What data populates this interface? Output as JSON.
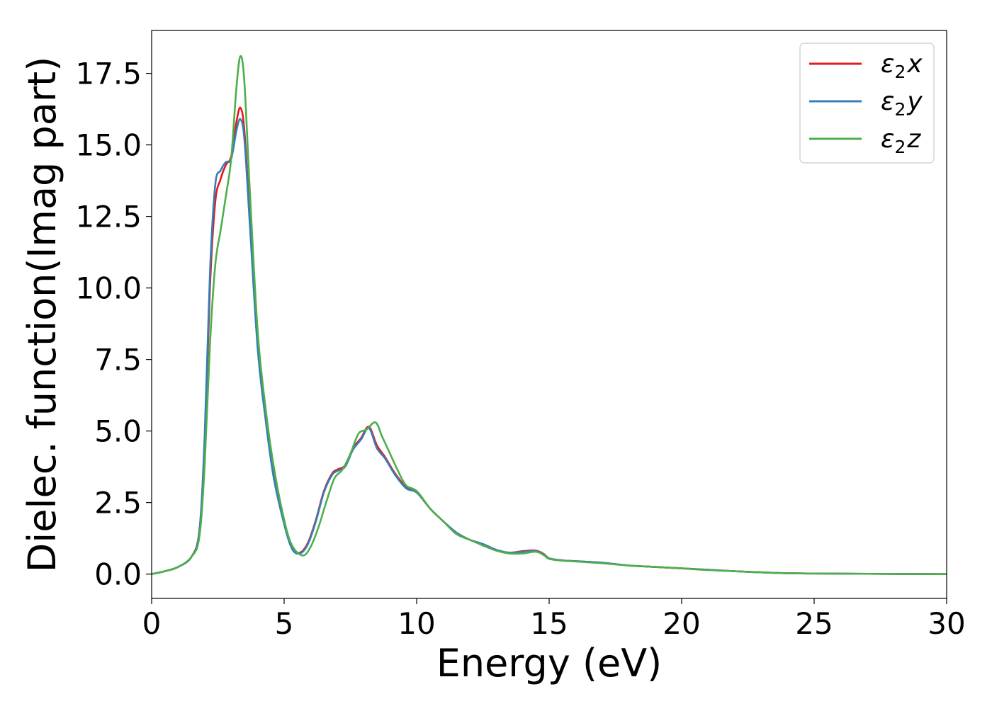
{
  "chart_data": {
    "type": "line",
    "title": "",
    "xlabel": "Energy (eV)",
    "ylabel": "Dielec. function(Imag part)",
    "xlim": [
      0,
      30
    ],
    "ylim": [
      -0.85,
      19.0
    ],
    "xticks": [
      0,
      5,
      10,
      15,
      20,
      25,
      30
    ],
    "xtick_labels": [
      "0",
      "5",
      "10",
      "15",
      "20",
      "25",
      "30"
    ],
    "yticks": [
      0.0,
      2.5,
      5.0,
      7.5,
      10.0,
      12.5,
      15.0,
      17.5
    ],
    "ytick_labels": [
      "0.0",
      "2.5",
      "5.0",
      "7.5",
      "10.0",
      "12.5",
      "15.0",
      "17.5"
    ],
    "grid": false,
    "legend_position": "top-right",
    "series": [
      {
        "name": "ε2x",
        "legend_base": "ε",
        "legend_sub": "2",
        "legend_suffix": "x",
        "color": "#e41a1c",
        "x": [
          0,
          0.5,
          1.0,
          1.5,
          1.8,
          2.0,
          2.2,
          2.4,
          2.6,
          2.8,
          3.0,
          3.2,
          3.35,
          3.5,
          3.7,
          4.0,
          4.3,
          4.6,
          5.0,
          5.3,
          5.6,
          5.9,
          6.2,
          6.5,
          6.8,
          7.0,
          7.3,
          7.6,
          7.9,
          8.2,
          8.5,
          8.8,
          9.2,
          9.6,
          10.0,
          10.5,
          11.0,
          11.5,
          12.0,
          12.5,
          13.0,
          13.5,
          14.0,
          14.5,
          14.8,
          15.0,
          15.5,
          16.0,
          17.0,
          18.0,
          19.0,
          20.0,
          21.0,
          22.0,
          23.0,
          24.0,
          25.0,
          27.0,
          30.0
        ],
        "y": [
          0.0,
          0.1,
          0.25,
          0.6,
          1.5,
          4.5,
          10.0,
          13.0,
          13.8,
          14.3,
          14.6,
          15.8,
          16.3,
          15.5,
          12.5,
          8.0,
          5.5,
          3.5,
          1.8,
          0.9,
          0.75,
          1.1,
          1.9,
          2.9,
          3.5,
          3.65,
          3.8,
          4.4,
          4.75,
          5.15,
          4.5,
          4.1,
          3.5,
          3.05,
          2.9,
          2.3,
          1.85,
          1.45,
          1.2,
          1.05,
          0.85,
          0.75,
          0.8,
          0.82,
          0.7,
          0.55,
          0.48,
          0.45,
          0.4,
          0.3,
          0.25,
          0.2,
          0.15,
          0.1,
          0.06,
          0.03,
          0.02,
          0.01,
          0.0
        ]
      },
      {
        "name": "ε2y",
        "legend_base": "ε",
        "legend_sub": "2",
        "legend_suffix": "y",
        "color": "#377eb8",
        "x": [
          0,
          0.5,
          1.0,
          1.5,
          1.8,
          2.0,
          2.2,
          2.4,
          2.6,
          2.8,
          3.0,
          3.2,
          3.35,
          3.5,
          3.7,
          4.0,
          4.3,
          4.6,
          5.0,
          5.3,
          5.6,
          5.9,
          6.2,
          6.5,
          6.8,
          7.0,
          7.3,
          7.6,
          7.9,
          8.2,
          8.5,
          8.8,
          9.2,
          9.6,
          10.0,
          10.5,
          11.0,
          11.5,
          12.0,
          12.5,
          13.0,
          13.5,
          14.0,
          14.5,
          14.8,
          15.0,
          15.5,
          16.0,
          17.0,
          18.0,
          19.0,
          20.0,
          21.0,
          22.0,
          23.0,
          24.0,
          25.0,
          27.0,
          30.0
        ],
        "y": [
          0.0,
          0.1,
          0.25,
          0.6,
          1.5,
          4.8,
          10.5,
          13.6,
          14.1,
          14.4,
          14.5,
          15.5,
          15.9,
          15.2,
          12.3,
          7.9,
          5.4,
          3.4,
          1.75,
          0.88,
          0.72,
          1.05,
          1.85,
          2.85,
          3.45,
          3.6,
          3.75,
          4.35,
          4.7,
          5.1,
          4.4,
          4.05,
          3.45,
          3.0,
          2.85,
          2.3,
          1.85,
          1.45,
          1.2,
          1.05,
          0.85,
          0.75,
          0.78,
          0.8,
          0.68,
          0.55,
          0.48,
          0.45,
          0.4,
          0.3,
          0.25,
          0.2,
          0.15,
          0.1,
          0.06,
          0.03,
          0.02,
          0.01,
          0.0
        ]
      },
      {
        "name": "ε2z",
        "legend_base": "ε",
        "legend_sub": "2",
        "legend_suffix": "z",
        "color": "#4daf4a",
        "x": [
          0,
          0.5,
          1.0,
          1.5,
          1.8,
          2.0,
          2.2,
          2.4,
          2.6,
          2.8,
          3.0,
          3.2,
          3.35,
          3.5,
          3.7,
          4.0,
          4.3,
          4.6,
          5.0,
          5.3,
          5.7,
          6.0,
          6.3,
          6.6,
          6.9,
          7.2,
          7.5,
          7.8,
          8.1,
          8.45,
          8.7,
          9.0,
          9.3,
          9.6,
          10.0,
          10.5,
          11.0,
          11.5,
          12.0,
          12.5,
          13.0,
          13.5,
          14.0,
          14.5,
          14.8,
          15.0,
          15.5,
          16.0,
          17.0,
          18.0,
          19.0,
          20.0,
          21.0,
          22.0,
          23.0,
          24.0,
          25.0,
          27.0,
          30.0
        ],
        "y": [
          0.0,
          0.1,
          0.25,
          0.6,
          1.3,
          3.8,
          8.0,
          10.8,
          12.0,
          13.2,
          14.5,
          17.0,
          18.1,
          17.2,
          13.5,
          8.5,
          5.8,
          3.8,
          1.9,
          1.0,
          0.65,
          0.95,
          1.65,
          2.55,
          3.35,
          3.65,
          4.2,
          4.9,
          5.05,
          5.3,
          4.8,
          4.2,
          3.6,
          3.1,
          2.9,
          2.3,
          1.85,
          1.4,
          1.2,
          1.0,
          0.82,
          0.72,
          0.72,
          0.78,
          0.66,
          0.53,
          0.47,
          0.44,
          0.38,
          0.3,
          0.25,
          0.2,
          0.14,
          0.1,
          0.06,
          0.03,
          0.02,
          0.01,
          0.0
        ]
      }
    ]
  }
}
